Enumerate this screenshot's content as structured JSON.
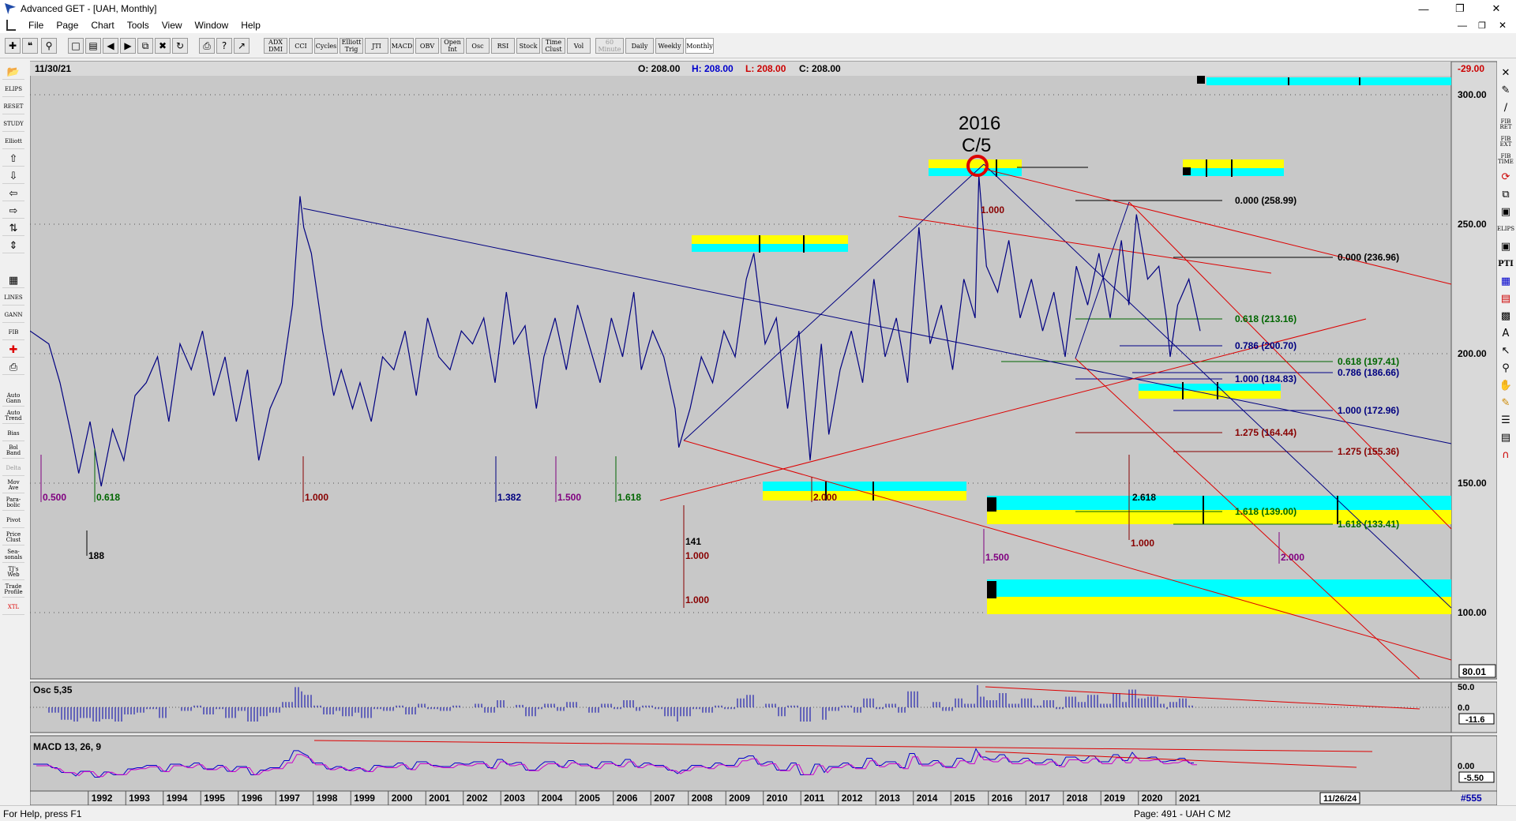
{
  "window": {
    "title": "Advanced GET - [UAH, Monthly]"
  },
  "menu": [
    "File",
    "Page",
    "Chart",
    "Tools",
    "View",
    "Window",
    "Help"
  ],
  "toolbar": {
    "icons": [
      "crosshair-icon",
      "quote-icon",
      "zoom-icon",
      "new-page-icon",
      "print-preview-icon",
      "save-icon",
      "back-icon",
      "forward-icon",
      "copy-icon",
      "delete-icon",
      "refresh-icon",
      "print-icon",
      "help-icon",
      "whats-this-icon"
    ],
    "studies": [
      "ADX DMI",
      "CCI",
      "Cycles",
      "Elliott Trig",
      "JTI",
      "MACD",
      "OBV",
      "Open Int",
      "Osc",
      "RSI",
      "Stock",
      "Time Clust",
      "Vol"
    ],
    "intervals": [
      "60 Minute",
      "Daily",
      "Weekly",
      "Monthly"
    ],
    "active_interval": "Monthly"
  },
  "left_tools": [
    "ELIPS",
    "RESET",
    "STUDY",
    "Elliott",
    "up-arrow-icon",
    "down-arrow-icon",
    "left-arrow-icon",
    "right-arrow-icon",
    "cycle-icon",
    "spread-icon",
    "grid-icon",
    "LINES",
    "GANN",
    "FIB",
    "cross-icon",
    "print-icon",
    "Auto Gann",
    "Auto Trend",
    "Bias",
    "Bol Band",
    "Delta",
    "Mov Ave",
    "Para-bolic",
    "Pivot",
    "Price Clust",
    "Sea-sonals",
    "TJ's Web",
    "Trade Profile",
    "XTL"
  ],
  "right_tools": [
    "close-icon",
    "pencil-icon",
    "line-icon",
    "FIB RET",
    "FIB EXT",
    "FIB TIME",
    "swirl-icon",
    "copy-icon",
    "window-icon",
    "ELIPS",
    "ruler-icon",
    "PTI",
    "grid-icon",
    "calendar-icon",
    "icon-b",
    "text-icon",
    "arrow-icon",
    "magnifier-icon",
    "grab-icon",
    "paint-icon",
    "list-icon",
    "note-icon",
    "magnet-icon"
  ],
  "header": {
    "date": "11/30/21",
    "open": "O: 208.00",
    "high": "H: 208.00",
    "low": "L: 208.00",
    "close": "C: 208.00",
    "change": "-29.00"
  },
  "price_axis": {
    "ticks": [
      "300.00",
      "250.00",
      "200.00",
      "150.00",
      "100.00"
    ],
    "last": "80.01"
  },
  "osc_panel": {
    "label": "Osc 5,35",
    "ticks": [
      "50.0",
      "0.0"
    ],
    "value": "-11.6"
  },
  "macd_panel": {
    "label": "MACD 13, 26, 9",
    "ticks": [
      "0.00"
    ],
    "value": "-5.50"
  },
  "time_axis": {
    "years": [
      "1992",
      "1993",
      "1994",
      "1995",
      "1996",
      "1997",
      "1998",
      "1999",
      "2000",
      "2001",
      "2002",
      "2003",
      "2004",
      "2005",
      "2006",
      "2007",
      "2008",
      "2009",
      "2010",
      "2011",
      "2012",
      "2013",
      "2014",
      "2015",
      "2016",
      "2017",
      "2018",
      "2019",
      "2020",
      "2021"
    ],
    "future_date": "11/26/24",
    "count": "#555"
  },
  "annotations": {
    "peak_year": "2016",
    "peak_wave": "C/5",
    "ratios": [
      "0.500",
      "0.618",
      "188",
      "1.000",
      "1.382",
      "1.500",
      "1.618",
      "141",
      "1.000",
      "1.000",
      "2.000",
      "1.000",
      "1.500",
      "2.618",
      "1.000",
      "2.000"
    ],
    "fib_levels": [
      "0.000 (258.99)",
      "0.000 (236.96)",
      "0.618 (213.16)",
      "0.786 (200.70)",
      "0.618 (197.41)",
      "1.000 (184.83)",
      "0.786 (186.66)",
      "1.000 (172.96)",
      "1.275 (164.44)",
      "1.275 (155.36)",
      "1.618 (139.00)",
      "1.618 (133.41)"
    ]
  },
  "chart_data": {
    "type": "line",
    "x_range": [
      "1991",
      "2021-11"
    ],
    "ylim": [
      80.01,
      310
    ],
    "series": [
      {
        "x": [
          1990.7,
          1991.2,
          1991.5,
          1991.8,
          1992.0,
          1992.3,
          1992.6,
          1992.9,
          1993.2,
          1993.5,
          1993.8,
          1994.1,
          1994.4,
          1994.7,
          1995.0,
          1995.3,
          1995.6,
          1995.9,
          1996.2,
          1996.5,
          1996.8,
          1997.1,
          1997.4,
          1997.7,
          1997.9,
          1998.0,
          1998.2,
          1998.5,
          1998.8,
          1999.0,
          1999.3,
          1999.5,
          1999.8,
          2000.1,
          2000.4,
          2000.7,
          2001.0,
          2001.3,
          2001.6,
          2001.9,
          2002.2,
          2002.5,
          2002.8,
          2003.1,
          2003.4,
          2003.6,
          2003.9,
          2004.2,
          2004.4,
          2004.7,
          2005.0,
          2005.3,
          2005.6,
          2005.9,
          2006.2,
          2006.5,
          2006.8,
          2007.0,
          2007.3,
          2007.6,
          2007.9,
          2008.0,
          2008.3,
          2008.6,
          2008.9,
          2009.2,
          2009.5,
          2009.8,
          2010.0,
          2010.3,
          2010.6,
          2010.9,
          2011.2,
          2011.5,
          2011.8,
          2012.0,
          2012.3,
          2012.6,
          2012.9,
          2013.2,
          2013.5,
          2013.8,
          2014.1,
          2014.4,
          2014.7,
          2015.0,
          2015.3,
          2015.6,
          2015.9,
          2016.0,
          2016.2,
          2016.5,
          2016.8,
          2017.1,
          2017.4,
          2017.7,
          2018.0,
          2018.3,
          2018.6,
          2018.9,
          2019.2,
          2019.5,
          2019.8,
          2020.0,
          2020.2,
          2020.5,
          2020.8,
          2021.0,
          2021.1,
          2021.3,
          2021.6,
          2021.9
        ],
        "values": [
          210,
          205,
          190,
          170,
          155,
          175,
          150,
          172,
          160,
          185,
          190,
          200,
          175,
          205,
          195,
          210,
          185,
          200,
          175,
          195,
          160,
          180,
          190,
          220,
          262,
          250,
          240,
          210,
          185,
          195,
          180,
          190,
          175,
          200,
          195,
          210,
          185,
          215,
          200,
          195,
          210,
          205,
          215,
          190,
          225,
          205,
          212,
          180,
          200,
          215,
          195,
          220,
          205,
          190,
          215,
          200,
          225,
          195,
          210,
          200,
          180,
          165,
          180,
          200,
          190,
          210,
          200,
          230,
          240,
          205,
          215,
          180,
          210,
          160,
          205,
          170,
          195,
          210,
          190,
          230,
          200,
          215,
          190,
          250,
          205,
          220,
          195,
          230,
          215,
          270,
          235,
          225,
          245,
          215,
          230,
          210,
          225,
          200,
          235,
          220,
          240,
          215,
          245,
          220,
          255,
          230,
          235,
          215,
          200,
          220,
          230,
          210
        ]
      }
    ]
  }
}
